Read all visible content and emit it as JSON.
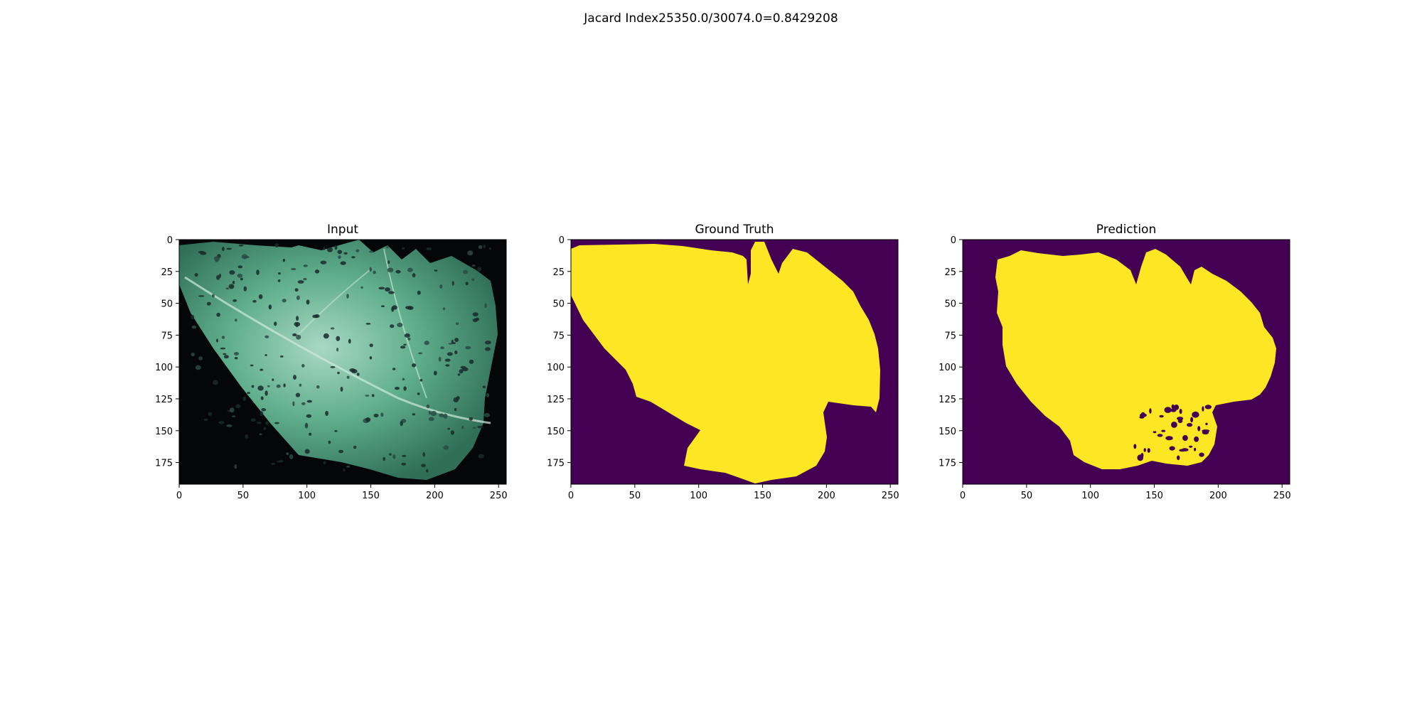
{
  "figure": {
    "suptitle": "Jacard Index25350.0/30074.0=0.8429208"
  },
  "chart_data": [
    {
      "type": "image",
      "title": "Input",
      "xticks": [
        0,
        50,
        100,
        150,
        200,
        250
      ],
      "yticks": [
        0,
        25,
        50,
        75,
        100,
        125,
        150,
        175
      ],
      "xlim": [
        0,
        256
      ],
      "ylim": [
        192,
        0
      ],
      "content": "photo of a green leaf with dark spots on black background"
    },
    {
      "type": "heatmap",
      "title": "Ground Truth",
      "xticks": [
        0,
        50,
        100,
        150,
        200,
        250
      ],
      "yticks": [
        0,
        25,
        50,
        75,
        100,
        125,
        150,
        175
      ],
      "xlim": [
        0,
        256
      ],
      "ylim": [
        192,
        0
      ],
      "colors": {
        "background": "#440154",
        "foreground": "#fde725"
      }
    },
    {
      "type": "heatmap",
      "title": "Prediction",
      "xticks": [
        0,
        50,
        100,
        150,
        200,
        250
      ],
      "yticks": [
        0,
        25,
        50,
        75,
        100,
        125,
        150,
        175
      ],
      "xlim": [
        0,
        256
      ],
      "ylim": [
        192,
        0
      ],
      "colors": {
        "background": "#440154",
        "foreground": "#fde725"
      }
    }
  ]
}
